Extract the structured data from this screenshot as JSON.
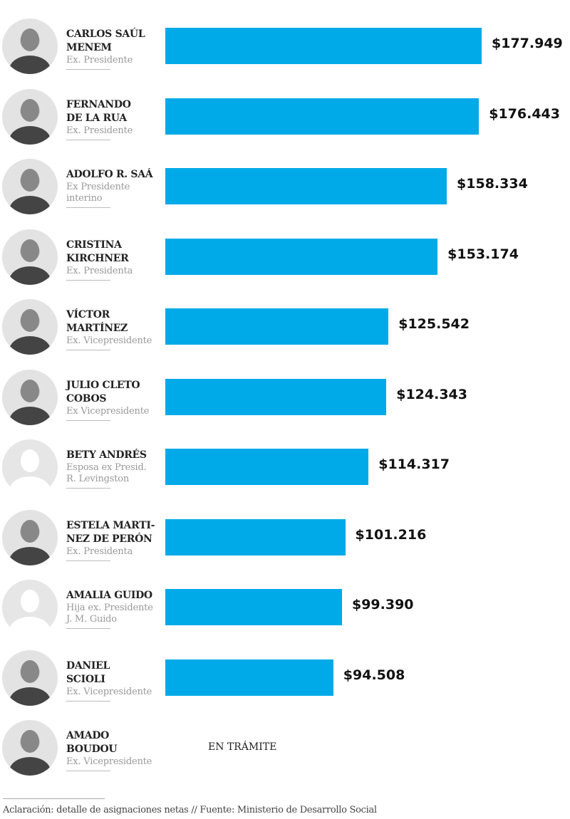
{
  "chart_data": {
    "type": "bar",
    "orientation": "horizontal",
    "color": "#00a9e8",
    "rows": [
      {
        "name": [
          "CARLOS SAÚL",
          "MENEM"
        ],
        "role": [
          "Ex. Presidente"
        ],
        "value": 177949,
        "label": "$177.949"
      },
      {
        "name": [
          "FERNANDO",
          "DE LA RUA"
        ],
        "role": [
          "Ex. Presidente"
        ],
        "value": 176443,
        "label": "$176.443"
      },
      {
        "name": [
          "ADOLFO R. SAÁ"
        ],
        "role": [
          "Ex Presidente",
          "interino"
        ],
        "value": 158334,
        "label": "$158.334"
      },
      {
        "name": [
          "CRISTINA",
          "KIRCHNER"
        ],
        "role": [
          "Ex. Presidenta"
        ],
        "value": 153174,
        "label": "$153.174"
      },
      {
        "name": [
          "VÍCTOR",
          "MARTÍNEZ"
        ],
        "role": [
          "Ex. Vicepresidente"
        ],
        "value": 125542,
        "label": "$125.542"
      },
      {
        "name": [
          "JULIO CLETO",
          "COBOS"
        ],
        "role": [
          "Ex Vicepresidente"
        ],
        "value": 124343,
        "label": "$124.343"
      },
      {
        "name": [
          "BETY ANDRÉS"
        ],
        "role": [
          "Esposa ex Presid.",
          "R. Levingston"
        ],
        "value": 114317,
        "label": "$114.317",
        "blank_photo": true
      },
      {
        "name": [
          "ESTELA MARTI-",
          "NEZ DE PERÓN"
        ],
        "role": [
          "Ex. Presidenta"
        ],
        "value": 101216,
        "label": "$101.216"
      },
      {
        "name": [
          "AMALIA GUIDO"
        ],
        "role": [
          "Hija ex. Presidente",
          "J. M. Guido"
        ],
        "value": 99390,
        "label": "$99.390",
        "blank_photo": true
      },
      {
        "name": [
          "DANIEL",
          "SCIOLI"
        ],
        "role": [
          "Ex. Vicepresidente"
        ],
        "value": 94508,
        "label": "$94.508"
      },
      {
        "name": [
          "AMADO",
          "BOUDOU"
        ],
        "role": [
          "Ex. Vicepresidente"
        ],
        "value": null,
        "label": "EN TRÁMITE"
      }
    ]
  },
  "footer": "Aclaración: detalle de asignaciones netas // Fuente: Ministerio de Desarrollo Social"
}
